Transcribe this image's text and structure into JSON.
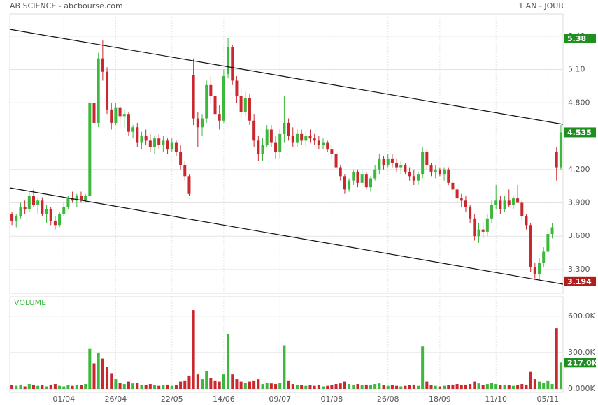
{
  "chart_data": {
    "type": "candlestick",
    "title": "AB SCIENCE - abcbourse.com",
    "subtitle": "1 AN - JOUR",
    "up_color": "#3cb83c",
    "down_color": "#c8282e",
    "grid": true,
    "ylim": [
      3.086,
      5.6
    ],
    "yticks": [
      {
        "value": 3.3,
        "label": "3.300"
      },
      {
        "value": 3.6,
        "label": "3.600"
      },
      {
        "value": 3.9,
        "label": "3.900"
      },
      {
        "value": 4.2,
        "label": "4.200"
      },
      {
        "value": 4.8,
        "label": "4.800"
      },
      {
        "value": 5.1,
        "label": "5.10"
      },
      {
        "value": 5.4,
        "label": "5.40"
      }
    ],
    "markers": [
      {
        "value": 5.38,
        "color": "#1f8f1f"
      },
      {
        "value": 4.535,
        "color": "#1f8f1f"
      },
      {
        "value": 3.194,
        "color": "#b01e1e"
      }
    ],
    "categories": [
      null,
      null,
      null,
      null,
      null,
      null,
      null,
      null,
      null,
      null,
      null,
      null,
      "01/04",
      null,
      null,
      null,
      null,
      null,
      null,
      null,
      null,
      null,
      null,
      null,
      "26/04",
      null,
      null,
      null,
      null,
      null,
      null,
      null,
      null,
      null,
      null,
      null,
      null,
      "22/05",
      null,
      null,
      null,
      null,
      null,
      null,
      null,
      null,
      null,
      null,
      null,
      "14/06",
      null,
      null,
      null,
      null,
      null,
      null,
      null,
      null,
      null,
      null,
      null,
      null,
      "09/07",
      null,
      null,
      null,
      null,
      null,
      null,
      null,
      null,
      null,
      null,
      null,
      "01/08",
      null,
      null,
      null,
      null,
      null,
      null,
      null,
      null,
      null,
      null,
      null,
      null,
      "26/08",
      null,
      null,
      null,
      null,
      null,
      null,
      null,
      null,
      null,
      null,
      null,
      "18/09",
      null,
      null,
      null,
      null,
      null,
      null,
      null,
      null,
      null,
      null,
      null,
      null,
      "11/10",
      null,
      null,
      null,
      null,
      null,
      null,
      null,
      null,
      null,
      null,
      null,
      "05/11",
      null,
      null,
      null
    ],
    "candles": [
      {
        "open": 3.8,
        "high": 3.82,
        "low": 3.7,
        "close": 3.74
      },
      {
        "open": 3.74,
        "high": 3.8,
        "low": 3.68,
        "close": 3.78
      },
      {
        "open": 3.78,
        "high": 3.9,
        "low": 3.76,
        "close": 3.86
      },
      {
        "open": 3.86,
        "high": 3.92,
        "low": 3.8,
        "close": 3.84
      },
      {
        "open": 3.84,
        "high": 4.0,
        "low": 3.82,
        "close": 3.96
      },
      {
        "open": 3.96,
        "high": 4.02,
        "low": 3.86,
        "close": 3.88
      },
      {
        "open": 3.88,
        "high": 3.94,
        "low": 3.8,
        "close": 3.92
      },
      {
        "open": 3.92,
        "high": 3.95,
        "low": 3.78,
        "close": 3.8
      },
      {
        "open": 3.8,
        "high": 3.88,
        "low": 3.72,
        "close": 3.84
      },
      {
        "open": 3.84,
        "high": 3.86,
        "low": 3.7,
        "close": 3.74
      },
      {
        "open": 3.74,
        "high": 3.78,
        "low": 3.66,
        "close": 3.7
      },
      {
        "open": 3.7,
        "high": 3.82,
        "low": 3.68,
        "close": 3.8
      },
      {
        "open": 3.8,
        "high": 3.9,
        "low": 3.78,
        "close": 3.86
      },
      {
        "open": 3.86,
        "high": 3.96,
        "low": 3.84,
        "close": 3.94
      },
      {
        "open": 3.94,
        "high": 4.0,
        "low": 3.9,
        "close": 3.92
      },
      {
        "open": 3.92,
        "high": 3.98,
        "low": 3.86,
        "close": 3.96
      },
      {
        "open": 3.96,
        "high": 4.0,
        "low": 3.9,
        "close": 3.92
      },
      {
        "open": 3.92,
        "high": 3.98,
        "low": 3.9,
        "close": 3.96
      },
      {
        "open": 3.96,
        "high": 4.82,
        "low": 3.94,
        "close": 4.8
      },
      {
        "open": 4.8,
        "high": 4.84,
        "low": 4.5,
        "close": 4.62
      },
      {
        "open": 4.62,
        "high": 5.25,
        "low": 4.58,
        "close": 5.2
      },
      {
        "open": 5.2,
        "high": 5.36,
        "low": 5.0,
        "close": 5.08
      },
      {
        "open": 5.08,
        "high": 5.12,
        "low": 4.7,
        "close": 4.74
      },
      {
        "open": 4.74,
        "high": 4.8,
        "low": 4.56,
        "close": 4.62
      },
      {
        "open": 4.62,
        "high": 4.8,
        "low": 4.6,
        "close": 4.76
      },
      {
        "open": 4.76,
        "high": 4.78,
        "low": 4.6,
        "close": 4.68
      },
      {
        "open": 4.68,
        "high": 4.74,
        "low": 4.58,
        "close": 4.7
      },
      {
        "open": 4.7,
        "high": 4.72,
        "low": 4.5,
        "close": 4.54
      },
      {
        "open": 4.54,
        "high": 4.6,
        "low": 4.48,
        "close": 4.58
      },
      {
        "open": 4.58,
        "high": 4.62,
        "low": 4.4,
        "close": 4.44
      },
      {
        "open": 4.44,
        "high": 4.54,
        "low": 4.38,
        "close": 4.5
      },
      {
        "open": 4.5,
        "high": 4.56,
        "low": 4.42,
        "close": 4.46
      },
      {
        "open": 4.46,
        "high": 4.52,
        "low": 4.36,
        "close": 4.4
      },
      {
        "open": 4.4,
        "high": 4.5,
        "low": 4.34,
        "close": 4.48
      },
      {
        "open": 4.48,
        "high": 4.52,
        "low": 4.38,
        "close": 4.42
      },
      {
        "open": 4.42,
        "high": 4.5,
        "low": 4.36,
        "close": 4.46
      },
      {
        "open": 4.46,
        "high": 4.48,
        "low": 4.34,
        "close": 4.38
      },
      {
        "open": 4.38,
        "high": 4.48,
        "low": 4.36,
        "close": 4.44
      },
      {
        "open": 4.44,
        "high": 4.46,
        "low": 4.32,
        "close": 4.36
      },
      {
        "open": 4.36,
        "high": 4.42,
        "low": 4.2,
        "close": 4.24
      },
      {
        "open": 4.24,
        "high": 4.28,
        "low": 4.1,
        "close": 4.14
      },
      {
        "open": 4.14,
        "high": 4.16,
        "low": 3.96,
        "close": 3.98
      },
      {
        "open": 5.05,
        "high": 5.2,
        "low": 4.6,
        "close": 4.66
      },
      {
        "open": 4.66,
        "high": 4.72,
        "low": 4.4,
        "close": 4.58
      },
      {
        "open": 4.58,
        "high": 4.7,
        "low": 4.5,
        "close": 4.66
      },
      {
        "open": 4.66,
        "high": 5.0,
        "low": 4.62,
        "close": 4.96
      },
      {
        "open": 4.96,
        "high": 5.04,
        "low": 4.8,
        "close": 4.86
      },
      {
        "open": 4.86,
        "high": 4.9,
        "low": 4.62,
        "close": 4.7
      },
      {
        "open": 4.7,
        "high": 4.78,
        "low": 4.56,
        "close": 4.64
      },
      {
        "open": 4.64,
        "high": 5.1,
        "low": 4.62,
        "close": 5.04
      },
      {
        "open": 5.06,
        "high": 5.38,
        "low": 5.02,
        "close": 5.3
      },
      {
        "open": 5.3,
        "high": 5.32,
        "low": 4.96,
        "close": 5.0
      },
      {
        "open": 5.0,
        "high": 5.04,
        "low": 4.8,
        "close": 4.86
      },
      {
        "open": 4.86,
        "high": 4.92,
        "low": 4.66,
        "close": 4.72
      },
      {
        "open": 4.72,
        "high": 4.9,
        "low": 4.68,
        "close": 4.84
      },
      {
        "open": 4.84,
        "high": 4.88,
        "low": 4.6,
        "close": 4.64
      },
      {
        "open": 4.64,
        "high": 4.7,
        "low": 4.4,
        "close": 4.46
      },
      {
        "open": 4.46,
        "high": 4.5,
        "low": 4.28,
        "close": 4.34
      },
      {
        "open": 4.34,
        "high": 4.48,
        "low": 4.28,
        "close": 4.42
      },
      {
        "open": 4.42,
        "high": 4.6,
        "low": 4.4,
        "close": 4.56
      },
      {
        "open": 4.56,
        "high": 4.6,
        "low": 4.4,
        "close": 4.44
      },
      {
        "open": 4.44,
        "high": 4.5,
        "low": 4.3,
        "close": 4.36
      },
      {
        "open": 4.36,
        "high": 4.56,
        "low": 4.3,
        "close": 4.52
      },
      {
        "open": 4.52,
        "high": 4.86,
        "low": 4.44,
        "close": 4.62
      },
      {
        "open": 4.62,
        "high": 4.66,
        "low": 4.46,
        "close": 4.5
      },
      {
        "open": 4.5,
        "high": 4.58,
        "low": 4.4,
        "close": 4.44
      },
      {
        "open": 4.44,
        "high": 4.56,
        "low": 4.4,
        "close": 4.52
      },
      {
        "open": 4.52,
        "high": 4.56,
        "low": 4.42,
        "close": 4.46
      },
      {
        "open": 4.46,
        "high": 4.54,
        "low": 4.4,
        "close": 4.5
      },
      {
        "open": 4.5,
        "high": 4.56,
        "low": 4.44,
        "close": 4.48
      },
      {
        "open": 4.48,
        "high": 4.52,
        "low": 4.42,
        "close": 4.46
      },
      {
        "open": 4.46,
        "high": 4.5,
        "low": 4.38,
        "close": 4.42
      },
      {
        "open": 4.42,
        "high": 4.48,
        "low": 4.38,
        "close": 4.44
      },
      {
        "open": 4.44,
        "high": 4.46,
        "low": 4.36,
        "close": 4.38
      },
      {
        "open": 4.38,
        "high": 4.42,
        "low": 4.3,
        "close": 4.34
      },
      {
        "open": 4.34,
        "high": 4.36,
        "low": 4.2,
        "close": 4.22
      },
      {
        "open": 4.22,
        "high": 4.24,
        "low": 4.1,
        "close": 4.14
      },
      {
        "open": 4.14,
        "high": 4.16,
        "low": 3.98,
        "close": 4.02
      },
      {
        "open": 4.02,
        "high": 4.12,
        "low": 4.0,
        "close": 4.1
      },
      {
        "open": 4.1,
        "high": 4.2,
        "low": 4.06,
        "close": 4.18
      },
      {
        "open": 4.18,
        "high": 4.2,
        "low": 4.04,
        "close": 4.08
      },
      {
        "open": 4.08,
        "high": 4.2,
        "low": 4.06,
        "close": 4.16
      },
      {
        "open": 4.16,
        "high": 4.18,
        "low": 4.02,
        "close": 4.04
      },
      {
        "open": 4.04,
        "high": 4.14,
        "low": 4.0,
        "close": 4.12
      },
      {
        "open": 4.12,
        "high": 4.24,
        "low": 4.1,
        "close": 4.2
      },
      {
        "open": 4.2,
        "high": 4.34,
        "low": 4.16,
        "close": 4.3
      },
      {
        "open": 4.3,
        "high": 4.32,
        "low": 4.2,
        "close": 4.24
      },
      {
        "open": 4.24,
        "high": 4.34,
        "low": 4.22,
        "close": 4.3
      },
      {
        "open": 4.3,
        "high": 4.34,
        "low": 4.22,
        "close": 4.26
      },
      {
        "open": 4.26,
        "high": 4.3,
        "low": 4.18,
        "close": 4.22
      },
      {
        "open": 4.22,
        "high": 4.28,
        "low": 4.16,
        "close": 4.24
      },
      {
        "open": 4.24,
        "high": 4.26,
        "low": 4.16,
        "close": 4.18
      },
      {
        "open": 4.18,
        "high": 4.22,
        "low": 4.1,
        "close": 4.14
      },
      {
        "open": 4.14,
        "high": 4.2,
        "low": 4.06,
        "close": 4.1
      },
      {
        "open": 4.1,
        "high": 4.18,
        "low": 4.06,
        "close": 4.16
      },
      {
        "open": 4.16,
        "high": 4.4,
        "low": 4.12,
        "close": 4.36
      },
      {
        "open": 4.36,
        "high": 4.38,
        "low": 4.2,
        "close": 4.24
      },
      {
        "open": 4.24,
        "high": 4.26,
        "low": 4.14,
        "close": 4.18
      },
      {
        "open": 4.18,
        "high": 4.24,
        "low": 4.12,
        "close": 4.2
      },
      {
        "open": 4.2,
        "high": 4.22,
        "low": 4.14,
        "close": 4.16
      },
      {
        "open": 4.16,
        "high": 4.22,
        "low": 4.1,
        "close": 4.2
      },
      {
        "open": 4.2,
        "high": 4.22,
        "low": 4.06,
        "close": 4.08
      },
      {
        "open": 4.08,
        "high": 4.12,
        "low": 3.98,
        "close": 4.02
      },
      {
        "open": 4.02,
        "high": 4.04,
        "low": 3.9,
        "close": 3.94
      },
      {
        "open": 3.94,
        "high": 3.98,
        "low": 3.86,
        "close": 3.92
      },
      {
        "open": 3.92,
        "high": 3.96,
        "low": 3.82,
        "close": 3.86
      },
      {
        "open": 3.86,
        "high": 3.88,
        "low": 3.72,
        "close": 3.76
      },
      {
        "open": 3.76,
        "high": 3.8,
        "low": 3.56,
        "close": 3.6
      },
      {
        "open": 3.6,
        "high": 3.72,
        "low": 3.54,
        "close": 3.66
      },
      {
        "open": 3.66,
        "high": 3.72,
        "low": 3.58,
        "close": 3.64
      },
      {
        "open": 3.64,
        "high": 3.8,
        "low": 3.6,
        "close": 3.76
      },
      {
        "open": 3.76,
        "high": 3.92,
        "low": 3.72,
        "close": 3.88
      },
      {
        "open": 3.88,
        "high": 4.06,
        "low": 3.84,
        "close": 3.92
      },
      {
        "open": 3.92,
        "high": 3.96,
        "low": 3.8,
        "close": 3.84
      },
      {
        "open": 3.84,
        "high": 3.96,
        "low": 3.82,
        "close": 3.92
      },
      {
        "open": 3.92,
        "high": 4.02,
        "low": 3.86,
        "close": 3.88
      },
      {
        "open": 3.88,
        "high": 3.96,
        "low": 3.84,
        "close": 3.94
      },
      {
        "open": 3.94,
        "high": 4.06,
        "low": 3.9,
        "close": 3.9
      },
      {
        "open": 3.9,
        "high": 3.92,
        "low": 3.74,
        "close": 3.78
      },
      {
        "open": 3.78,
        "high": 3.8,
        "low": 3.66,
        "close": 3.7
      },
      {
        "open": 3.7,
        "high": 3.72,
        "low": 3.28,
        "close": 3.32
      },
      {
        "open": 3.32,
        "high": 3.36,
        "low": 3.22,
        "close": 3.26
      },
      {
        "open": 3.26,
        "high": 3.4,
        "low": 3.194,
        "close": 3.36
      },
      {
        "open": 3.36,
        "high": 3.5,
        "low": 3.32,
        "close": 3.46
      },
      {
        "open": 3.46,
        "high": 3.66,
        "low": 3.44,
        "close": 3.62
      },
      {
        "open": 3.62,
        "high": 3.72,
        "low": 3.58,
        "close": 3.68
      },
      {
        "open": 4.36,
        "high": 4.4,
        "low": 4.1,
        "close": 4.22
      },
      {
        "open": 4.22,
        "high": 4.6,
        "low": 4.2,
        "close": 4.535
      }
    ],
    "volume": {
      "label": "VOLUME",
      "ylim": [
        0,
        760000
      ],
      "yticks": [
        {
          "value": 0,
          "label": "0.000K"
        },
        {
          "value": 300000,
          "label": "300.0K"
        },
        {
          "value": 600000,
          "label": "600.0K"
        }
      ],
      "last": {
        "value": 217000,
        "label": "217.0K",
        "color": "#1f8f1f"
      },
      "values": [
        30000,
        25000,
        35000,
        20000,
        40000,
        30000,
        25000,
        30000,
        20000,
        35000,
        40000,
        25000,
        20000,
        30000,
        25000,
        35000,
        30000,
        40000,
        330000,
        210000,
        300000,
        250000,
        180000,
        130000,
        80000,
        50000,
        40000,
        60000,
        45000,
        50000,
        35000,
        30000,
        40000,
        30000,
        25000,
        30000,
        35000,
        25000,
        30000,
        60000,
        70000,
        110000,
        650000,
        120000,
        80000,
        150000,
        90000,
        70000,
        60000,
        120000,
        450000,
        120000,
        80000,
        60000,
        50000,
        60000,
        70000,
        80000,
        40000,
        50000,
        45000,
        40000,
        50000,
        360000,
        70000,
        40000,
        35000,
        30000,
        25000,
        30000,
        25000,
        30000,
        20000,
        25000,
        30000,
        40000,
        45000,
        60000,
        40000,
        35000,
        40000,
        30000,
        35000,
        30000,
        40000,
        45000,
        30000,
        25000,
        30000,
        25000,
        20000,
        25000,
        30000,
        35000,
        25000,
        350000,
        60000,
        30000,
        25000,
        20000,
        25000,
        30000,
        35000,
        40000,
        30000,
        35000,
        40000,
        60000,
        45000,
        30000,
        40000,
        50000,
        40000,
        30000,
        35000,
        30000,
        25000,
        30000,
        40000,
        35000,
        140000,
        80000,
        60000,
        50000,
        70000,
        40000,
        500000,
        217000
      ]
    }
  }
}
